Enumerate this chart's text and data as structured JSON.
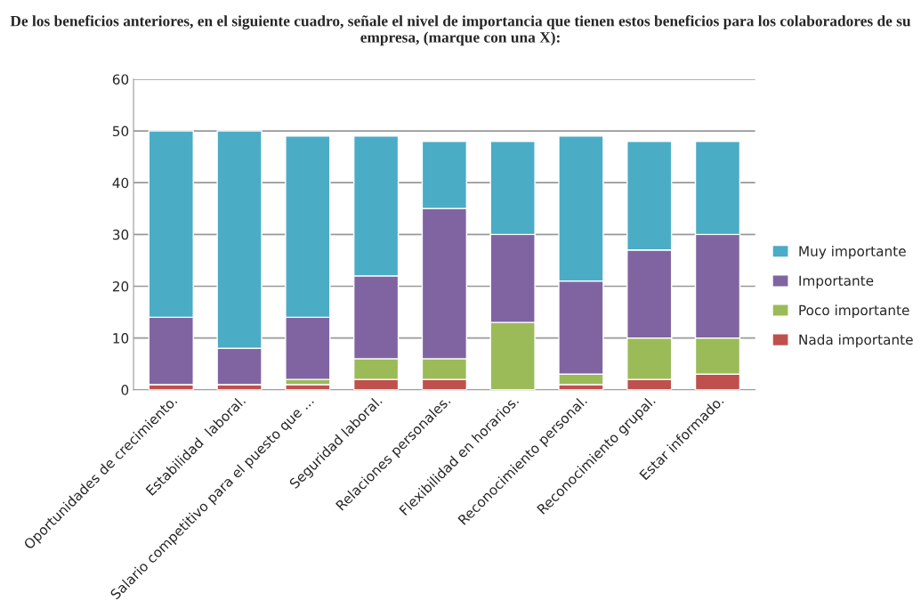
{
  "chart_data": {
    "type": "bar",
    "stacked": true,
    "title": "De los beneficios anteriores, en el siguiente cuadro, señale el nivel de importancia que tienen estos beneficios para los colaboradores de su empresa, (marque con una X):",
    "categories": [
      "Oportunidades de crecimiento.",
      "Estabilidad  laboral.",
      "Salario competitivo para el puesto que ...",
      "Seguridad laboral.",
      "Relaciones personales.",
      "Flexibilidad en horarios.",
      "Reconocimiento personal.",
      "Reconocimiento grupal.",
      "Estar informado."
    ],
    "series": [
      {
        "name": "Nada importante",
        "color": "#c0504d",
        "values": [
          1,
          1,
          1,
          2,
          2,
          0,
          1,
          2,
          3
        ]
      },
      {
        "name": "Poco importante",
        "color": "#9bbb59",
        "values": [
          0,
          0,
          1,
          4,
          4,
          13,
          2,
          8,
          7
        ]
      },
      {
        "name": "Importante",
        "color": "#8064a2",
        "values": [
          13,
          7,
          12,
          16,
          29,
          17,
          18,
          17,
          20
        ]
      },
      {
        "name": "Muy importante",
        "color": "#4bacc6",
        "values": [
          36,
          42,
          35,
          27,
          13,
          18,
          28,
          21,
          18
        ]
      }
    ],
    "ylim": [
      0,
      60
    ],
    "yticks": [
      0,
      10,
      20,
      30,
      40,
      50,
      60
    ],
    "grid": "y",
    "legend": "right"
  }
}
